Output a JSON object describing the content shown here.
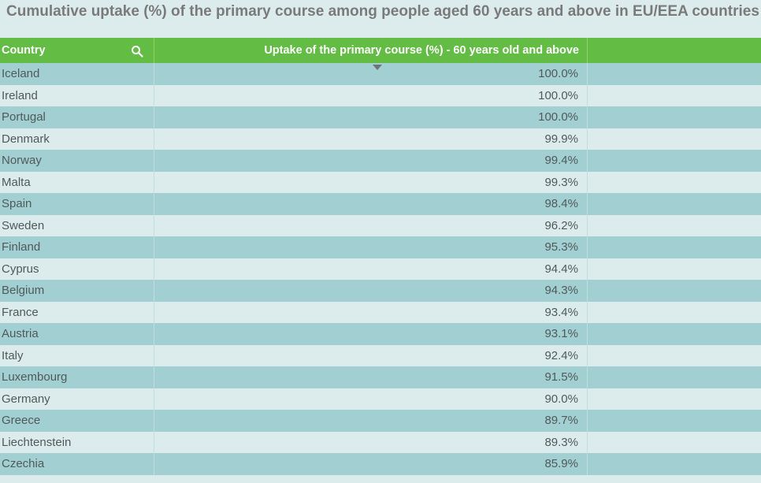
{
  "title": "Cumulative uptake (%) of the primary course among people aged 60 years and above in EU/EEA countries",
  "table": {
    "headers": {
      "country": "Country",
      "uptake": "Uptake of the primary course (%) - 60 years old and above"
    },
    "search_icon": "search-icon",
    "sort_icon": "sort-descending-icon",
    "rows": [
      {
        "country": "Iceland",
        "value": "100.0%"
      },
      {
        "country": "Ireland",
        "value": "100.0%"
      },
      {
        "country": "Portugal",
        "value": "100.0%"
      },
      {
        "country": "Denmark",
        "value": "99.9%"
      },
      {
        "country": "Norway",
        "value": "99.4%"
      },
      {
        "country": "Malta",
        "value": "99.3%"
      },
      {
        "country": "Spain",
        "value": "98.4%"
      },
      {
        "country": "Sweden",
        "value": "96.2%"
      },
      {
        "country": "Finland",
        "value": "95.3%"
      },
      {
        "country": "Cyprus",
        "value": "94.4%"
      },
      {
        "country": "Belgium",
        "value": "94.3%"
      },
      {
        "country": "France",
        "value": "93.4%"
      },
      {
        "country": "Austria",
        "value": "93.1%"
      },
      {
        "country": "Italy",
        "value": "92.4%"
      },
      {
        "country": "Luxembourg",
        "value": "91.5%"
      },
      {
        "country": "Germany",
        "value": "90.0%"
      },
      {
        "country": "Greece",
        "value": "89.7%"
      },
      {
        "country": "Liechtenstein",
        "value": "89.3%"
      },
      {
        "country": "Czechia",
        "value": "85.9%"
      }
    ]
  },
  "colors": {
    "header_bg": "#63bd45",
    "row_dark": "#a2cfd2",
    "row_light": "#dcecec",
    "title": "#7a7a7a"
  }
}
